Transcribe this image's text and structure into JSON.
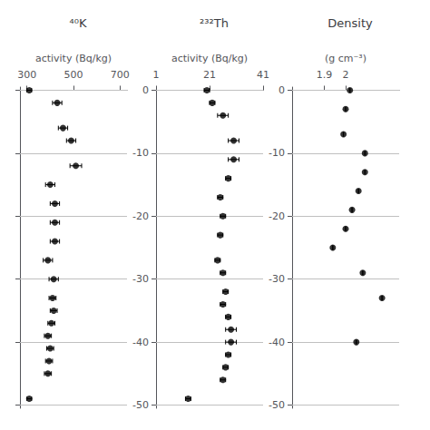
{
  "chart_data": [
    {
      "type": "scatter",
      "title": "⁴⁰K",
      "xlabel": "activity (Bq/kg)",
      "xlim": [
        270,
        730
      ],
      "xticks": [
        300,
        500,
        700
      ],
      "ylim": [
        -50.5,
        0.5
      ],
      "yticks": [
        0,
        -10,
        -20,
        -30,
        -40,
        -50
      ],
      "values": [
        0,
        -2,
        -6,
        -8,
        -12,
        -15,
        -18,
        -21,
        -24,
        -27,
        -30,
        -33,
        -35,
        -37,
        -39,
        -41,
        -43,
        -45,
        -49
      ],
      "x": [
        310,
        430,
        455,
        490,
        510,
        400,
        420,
        420,
        420,
        390,
        415,
        410,
        415,
        405,
        390,
        400,
        395,
        390,
        310
      ],
      "xerr": [
        10,
        20,
        20,
        20,
        25,
        20,
        20,
        20,
        20,
        20,
        20,
        15,
        15,
        15,
        15,
        15,
        15,
        15,
        10
      ],
      "color": "#000000",
      "marker": "circle",
      "grid": true,
      "tick_labels": "x"
    },
    {
      "type": "scatter",
      "title": "²³²Th",
      "xlabel": "activity (Bq/kg)",
      "xlim": [
        1,
        41
      ],
      "xticks": [
        1,
        21,
        41
      ],
      "ylim": [
        -50.5,
        0.5
      ],
      "yticks": [
        0,
        -10,
        -20,
        -30,
        -40,
        -50
      ],
      "values": [
        0,
        -2,
        -4,
        -8,
        -11,
        -14,
        -17,
        -20,
        -23,
        -27,
        -29,
        -32,
        -34,
        -36,
        -38,
        -40,
        -42,
        -44,
        -46,
        -49
      ],
      "x": [
        20,
        22,
        26,
        30,
        30,
        28,
        25,
        26,
        25,
        24,
        26,
        27,
        26,
        28,
        29,
        29,
        28,
        27,
        26,
        13
      ],
      "xerr": [
        1,
        1,
        2,
        2,
        2,
        1,
        1,
        1,
        1,
        1,
        1,
        1,
        1,
        1,
        2,
        2,
        1,
        1,
        1,
        1
      ],
      "color": "#000000",
      "marker": "circle",
      "grid": true
    },
    {
      "type": "scatter",
      "title": "Density",
      "xlabel": "(g cm⁻³)",
      "xlim": [
        1.75,
        2.25
      ],
      "xticks": [
        1.9,
        2.0
      ],
      "ylim": [
        -50.5,
        0.5
      ],
      "yticks": [
        0,
        -10,
        -20,
        -30,
        -40,
        -50
      ],
      "values": [
        0,
        -3,
        -7,
        -10,
        -13,
        -16,
        -19,
        -22,
        -25,
        -29,
        -33,
        -40
      ],
      "x": [
        2.02,
        2.0,
        1.99,
        2.09,
        2.09,
        2.06,
        2.03,
        2.0,
        1.94,
        2.08,
        2.17,
        2.05
      ],
      "xerr": [
        0,
        0,
        0,
        0,
        0,
        0,
        0,
        0,
        0,
        0,
        0,
        0
      ],
      "color": "#000000",
      "marker": "circle",
      "grid": true
    }
  ]
}
